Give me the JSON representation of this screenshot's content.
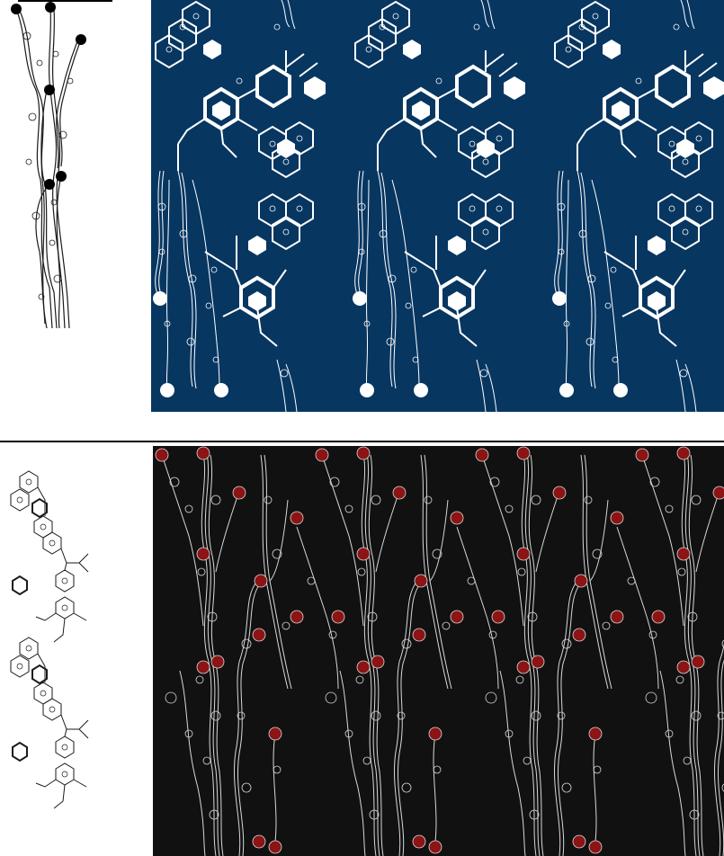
{
  "colors": {
    "page_background": "#ffffff",
    "top_pattern_background": "#073661",
    "top_pattern_ink": "#ffffff",
    "motif_ink": "#1a1a1a",
    "bottom_pattern_background": "#111111",
    "bottom_pattern_ink": "#d8d8d8",
    "bottom_node_fill": "#8c1414"
  },
  "sections": [
    {
      "id": "top",
      "motif": "vine-with-nodes",
      "pattern": "vine-and-molecule-repeat"
    },
    {
      "id": "bottom",
      "motif": "molecule-stack",
      "pattern": "vine-repeat-with-red-nodes"
    }
  ]
}
